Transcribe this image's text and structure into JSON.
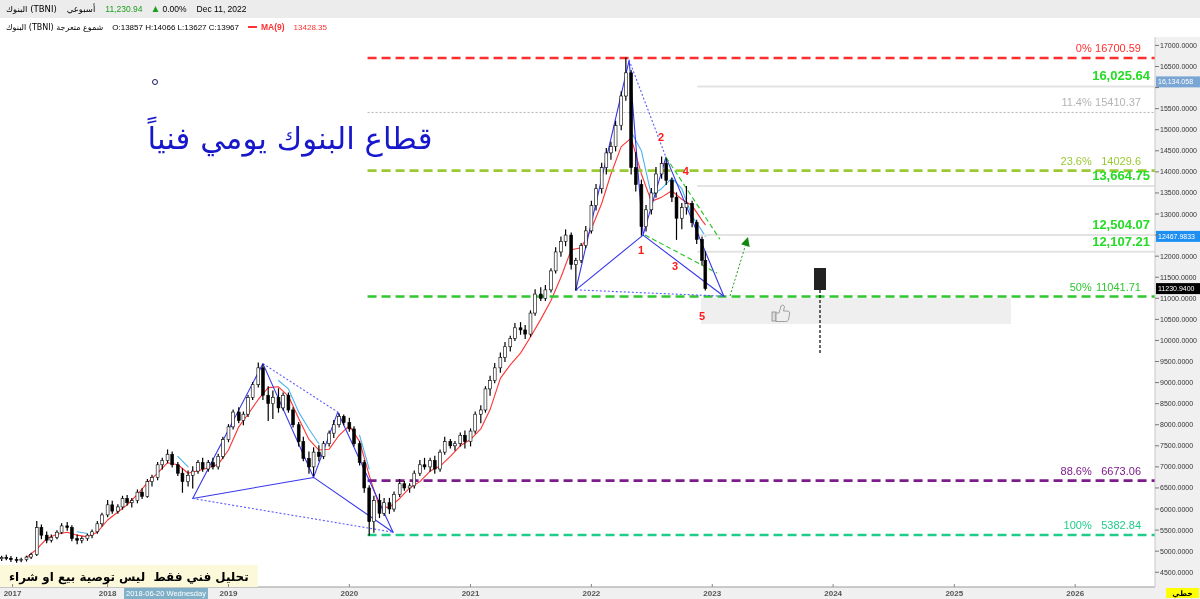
{
  "chart_data": {
    "type": "candlestick",
    "title": "قطاع البنوك يومي فنياً",
    "color": "#000000",
    "legend": "top left",
    "xlim": [
      "2017-02-10",
      "2026-08-30"
    ],
    "xticks": [
      {
        "value": "2017-03-20",
        "label": "2017"
      },
      "2018",
      "2019",
      "2020",
      "2021",
      "2022",
      "2023",
      "2024",
      "2025",
      "2026"
    ],
    "ylim": [
      4150,
      17200
    ],
    "yticks": [
      {
        "value": 4500,
        "label": "4500.0000"
      },
      {
        "value": 5000,
        "label": "5000.0000"
      },
      {
        "value": 5500,
        "label": "5500.0000"
      },
      {
        "value": 6000,
        "label": "6000.0000"
      },
      {
        "value": 6500,
        "label": "6500.0000"
      },
      {
        "value": 7000,
        "label": "7000.0000"
      },
      {
        "value": 7500,
        "label": "7500.0000"
      },
      {
        "value": 8000,
        "label": "8000.0000"
      },
      {
        "value": 8500,
        "label": "8500.0000"
      },
      {
        "value": 9000,
        "label": "9000.0000"
      },
      {
        "value": 9500,
        "label": "9500.0000"
      },
      {
        "value": 10000,
        "label": "10000.0000"
      },
      {
        "value": 10500,
        "label": "10500.0000"
      },
      {
        "value": 11000,
        "label": "11000.0000"
      },
      {
        "value": 11500,
        "label": "11500.0000"
      },
      {
        "value": 12000,
        "label": "12000.0000"
      },
      {
        "value": 12500,
        "label": null
      },
      {
        "value": 13000,
        "label": "13000.0000"
      },
      {
        "value": 13500,
        "label": "13500.0000"
      },
      {
        "value": 14000,
        "label": "14000.0000"
      },
      {
        "value": 14500,
        "label": "14500.0000"
      },
      {
        "value": 15000,
        "label": "15000.0000"
      },
      {
        "value": 15500,
        "label": "15500.0000"
      },
      {
        "value": 16000,
        "label": null
      },
      {
        "value": 16500,
        "label": "16500.0000"
      },
      {
        "value": 17000,
        "label": "17000.0000"
      }
    ],
    "x": [
      "2017-02-15",
      "2017-03-01",
      "2017-03-15",
      "2017-04-01",
      "2017-04-15",
      "2017-05-01",
      "2017-05-15",
      "2017-06-01",
      "2017-06-15",
      "2017-07-01",
      "2017-07-15",
      "2017-08-01",
      "2017-08-15",
      "2017-09-01",
      "2017-09-15",
      "2017-10-01",
      "2017-10-15",
      "2017-11-01",
      "2017-11-15",
      "2017-12-01",
      "2017-12-15",
      "2018-01-01",
      "2018-01-15",
      "2018-02-01",
      "2018-02-15",
      "2018-03-01",
      "2018-03-15",
      "2018-04-01",
      "2018-04-15",
      "2018-05-01",
      "2018-05-15",
      "2018-06-01",
      "2018-06-15",
      "2018-07-01",
      "2018-07-15",
      "2018-08-01",
      "2018-08-15",
      "2018-09-01",
      "2018-09-15",
      "2018-10-01",
      "2018-10-15",
      "2018-11-01",
      "2018-11-15",
      "2018-12-01",
      "2018-12-15",
      "2019-01-01",
      "2019-01-15",
      "2019-02-01",
      "2019-02-15",
      "2019-03-01",
      "2019-03-15",
      "2019-04-01",
      "2019-04-15",
      "2019-05-01",
      "2019-05-15",
      "2019-06-01",
      "2019-06-15",
      "2019-07-01",
      "2019-07-15",
      "2019-08-01",
      "2019-08-15",
      "2019-09-01",
      "2019-09-15",
      "2019-10-01",
      "2019-10-15",
      "2019-11-01",
      "2019-11-15",
      "2019-12-01",
      "2019-12-15",
      "2020-01-01",
      "2020-01-15",
      "2020-02-01",
      "2020-02-15",
      "2020-03-01",
      "2020-03-15",
      "2020-04-01",
      "2020-04-15",
      "2020-05-01",
      "2020-05-15",
      "2020-06-01",
      "2020-06-15",
      "2020-07-01",
      "2020-07-15",
      "2020-08-01",
      "2020-08-15",
      "2020-09-01",
      "2020-09-15",
      "2020-10-01",
      "2020-10-15",
      "2020-11-01",
      "2020-11-15",
      "2020-12-01",
      "2020-12-15",
      "2021-01-01",
      "2021-01-15",
      "2021-02-01",
      "2021-02-15",
      "2021-03-01",
      "2021-03-15",
      "2021-04-01",
      "2021-04-15",
      "2021-05-01",
      "2021-05-15",
      "2021-06-01",
      "2021-06-15",
      "2021-07-01",
      "2021-07-15",
      "2021-08-01",
      "2021-08-15",
      "2021-09-01",
      "2021-09-15",
      "2021-10-01",
      "2021-10-15",
      "2021-11-01",
      "2021-11-15",
      "2021-12-01",
      "2021-12-15",
      "2022-01-01",
      "2022-01-15",
      "2022-02-01",
      "2022-02-15",
      "2022-03-01",
      "2022-03-15",
      "2022-04-01",
      "2022-04-15",
      "2022-05-01",
      "2022-05-15",
      "2022-06-01",
      "2022-06-15",
      "2022-07-01",
      "2022-07-15",
      "2022-08-01",
      "2022-08-15",
      "2022-09-01",
      "2022-09-15",
      "2022-10-01",
      "2022-10-15",
      "2022-11-01",
      "2022-11-15",
      "2022-12-01",
      "2022-12-11"
    ],
    "ohlc": [
      [
        4820,
        4880,
        4780,
        4850
      ],
      [
        4850,
        4900,
        4800,
        4830
      ],
      [
        4830,
        4870,
        4760,
        4800
      ],
      [
        4800,
        4850,
        4740,
        4780
      ],
      [
        4780,
        4830,
        4750,
        4800
      ],
      [
        4800,
        4880,
        4770,
        4860
      ],
      [
        4860,
        4950,
        4830,
        4920
      ],
      [
        4920,
        5700,
        4900,
        5560
      ],
      [
        5560,
        5620,
        5300,
        5380
      ],
      [
        5380,
        5450,
        5200,
        5260
      ],
      [
        5260,
        5380,
        5220,
        5330
      ],
      [
        5330,
        5480,
        5300,
        5450
      ],
      [
        5450,
        5650,
        5420,
        5600
      ],
      [
        5600,
        5680,
        5500,
        5560
      ],
      [
        5560,
        5600,
        5250,
        5300
      ],
      [
        5300,
        5380,
        5180,
        5260
      ],
      [
        5260,
        5340,
        5200,
        5300
      ],
      [
        5300,
        5400,
        5260,
        5380
      ],
      [
        5380,
        5500,
        5320,
        5460
      ],
      [
        5460,
        5700,
        5430,
        5650
      ],
      [
        5650,
        5900,
        5600,
        5860
      ],
      [
        5860,
        6200,
        5820,
        6100
      ],
      [
        6100,
        6180,
        5900,
        5950
      ],
      [
        5950,
        6100,
        5900,
        6050
      ],
      [
        6050,
        6300,
        6000,
        6250
      ],
      [
        6250,
        6320,
        6100,
        6150
      ],
      [
        6150,
        6250,
        6050,
        6200
      ],
      [
        6200,
        6450,
        6150,
        6400
      ],
      [
        6400,
        6480,
        6250,
        6300
      ],
      [
        6300,
        6700,
        6280,
        6650
      ],
      [
        6650,
        6800,
        6550,
        6750
      ],
      [
        6750,
        7100,
        6700,
        7050
      ],
      [
        7050,
        7200,
        6950,
        7150
      ],
      [
        7150,
        7400,
        7100,
        7300
      ],
      [
        7300,
        7350,
        7000,
        7050
      ],
      [
        7050,
        7100,
        6800,
        6850
      ],
      [
        6850,
        6950,
        6400,
        6650
      ],
      [
        6650,
        6900,
        6550,
        6800
      ],
      [
        6800,
        7000,
        6500,
        6900
      ],
      [
        6900,
        7150,
        6850,
        7100
      ],
      [
        7100,
        7200,
        6900,
        6950
      ],
      [
        6950,
        7150,
        6900,
        7100
      ],
      [
        7100,
        7200,
        6950,
        7000
      ],
      [
        7000,
        7300,
        6950,
        7250
      ],
      [
        7250,
        7700,
        7200,
        7650
      ],
      [
        7650,
        8000,
        7600,
        7950
      ],
      [
        7950,
        8350,
        7900,
        8300
      ],
      [
        8300,
        8400,
        8050,
        8100
      ],
      [
        8100,
        8300,
        8000,
        8250
      ],
      [
        8250,
        8700,
        8200,
        8650
      ],
      [
        8650,
        9000,
        8600,
        8950
      ],
      [
        8950,
        9460,
        8900,
        9350
      ],
      [
        9350,
        9420,
        8600,
        8700
      ],
      [
        8700,
        8900,
        8100,
        8500
      ],
      [
        8500,
        8800,
        8150,
        8650
      ],
      [
        8650,
        8850,
        8300,
        8400
      ],
      [
        8400,
        8750,
        8350,
        8700
      ],
      [
        8700,
        8750,
        8300,
        8350
      ],
      [
        8350,
        8400,
        7950,
        8000
      ],
      [
        8000,
        8050,
        7500,
        7600
      ],
      [
        7600,
        7700,
        7150,
        7200
      ],
      [
        7200,
        7350,
        6850,
        7000
      ],
      [
        7000,
        7450,
        6800,
        7350
      ],
      [
        7350,
        7500,
        7150,
        7250
      ],
      [
        7250,
        7600,
        7200,
        7550
      ],
      [
        7550,
        7850,
        7500,
        7800
      ],
      [
        7800,
        8100,
        7700,
        8000
      ],
      [
        8000,
        8250,
        7950,
        8200
      ],
      [
        8200,
        8230,
        8000,
        8050
      ],
      [
        8050,
        8150,
        7850,
        7900
      ],
      [
        7900,
        7950,
        7500,
        7550
      ],
      [
        7550,
        7600,
        7050,
        7100
      ],
      [
        7100,
        7150,
        6400,
        6500
      ],
      [
        6500,
        6550,
        5380,
        5700
      ],
      [
        5700,
        6300,
        5450,
        6200
      ],
      [
        6200,
        6350,
        5800,
        5900
      ],
      [
        5900,
        6250,
        5850,
        6150
      ],
      [
        6150,
        6250,
        5900,
        6000
      ],
      [
        6000,
        6400,
        5950,
        6350
      ],
      [
        6350,
        6700,
        6300,
        6600
      ],
      [
        6600,
        6650,
        6450,
        6500
      ],
      [
        6500,
        6600,
        6400,
        6550
      ],
      [
        6550,
        6900,
        6500,
        6850
      ],
      [
        6850,
        7150,
        6800,
        7050
      ],
      [
        7050,
        7200,
        6950,
        7000
      ],
      [
        7000,
        7200,
        6900,
        7150
      ],
      [
        7150,
        7250,
        6850,
        6950
      ],
      [
        6950,
        7400,
        6900,
        7350
      ],
      [
        7350,
        7700,
        7300,
        7600
      ],
      [
        7600,
        7650,
        7450,
        7500
      ],
      [
        7500,
        7600,
        7400,
        7550
      ],
      [
        7550,
        7800,
        7500,
        7750
      ],
      [
        7750,
        7850,
        7450,
        7600
      ],
      [
        7600,
        7900,
        7500,
        7850
      ],
      [
        7850,
        8300,
        7800,
        8250
      ],
      [
        8250,
        8450,
        8050,
        8350
      ],
      [
        8350,
        8900,
        8300,
        8850
      ],
      [
        8850,
        9150,
        8700,
        9050
      ],
      [
        9050,
        9450,
        9000,
        9350
      ],
      [
        9350,
        9700,
        9250,
        9600
      ],
      [
        9600,
        9950,
        9500,
        9850
      ],
      [
        9850,
        10100,
        9750,
        10050
      ],
      [
        10050,
        10400,
        10000,
        10300
      ],
      [
        10300,
        10420,
        10150,
        10250
      ],
      [
        10250,
        10350,
        10050,
        10150
      ],
      [
        10150,
        10700,
        10100,
        10650
      ],
      [
        10650,
        11200,
        10600,
        11100
      ],
      [
        11100,
        11250,
        10950,
        11000
      ],
      [
        11000,
        11300,
        10950,
        11200
      ],
      [
        11200,
        11700,
        11150,
        11650
      ],
      [
        11650,
        12200,
        11600,
        12100
      ],
      [
        12100,
        12450,
        12000,
        12350
      ],
      [
        12350,
        12620,
        12250,
        12500
      ],
      [
        12500,
        12550,
        11700,
        11800
      ],
      [
        11800,
        11950,
        11200,
        11900
      ],
      [
        11900,
        12300,
        11850,
        12250
      ],
      [
        12250,
        12700,
        12200,
        12600
      ],
      [
        12600,
        13300,
        12550,
        13200
      ],
      [
        13200,
        13700,
        13100,
        13600
      ],
      [
        13600,
        14200,
        13500,
        14100
      ],
      [
        14100,
        14550,
        13950,
        14450
      ],
      [
        14450,
        14700,
        14300,
        14600
      ],
      [
        14600,
        15200,
        14500,
        15100
      ],
      [
        15100,
        15900,
        15000,
        15800
      ],
      [
        15800,
        16700.59,
        15700,
        16350
      ],
      [
        16350,
        16400,
        13950,
        14100
      ],
      [
        14100,
        14450,
        13550,
        13700
      ],
      [
        13700,
        13800,
        12500,
        12700
      ],
      [
        12700,
        13200,
        12600,
        13100
      ],
      [
        13100,
        13600,
        13000,
        13500
      ],
      [
        13500,
        14100,
        13400,
        13950
      ],
      [
        13950,
        14350,
        13850,
        14200
      ],
      [
        14200,
        14300,
        13700,
        13800
      ],
      [
        13800,
        13850,
        13300,
        13400
      ],
      [
        13400,
        13500,
        12400,
        12900
      ],
      [
        12900,
        13250,
        12650,
        13150
      ],
      [
        13150,
        13650,
        13000,
        13250
      ],
      [
        13250,
        13300,
        12700,
        12800
      ],
      [
        12800,
        12850,
        12300,
        12400
      ],
      [
        12400,
        12450,
        11800,
        11900
      ],
      [
        11900,
        12100,
        11200,
        11230.94
      ]
    ],
    "series": [
      {
        "type": "line",
        "color": "#4db3f0",
        "x": [
          "2017-10",
          "2017-11"
        ],
        "values": [
          5460,
          5420
        ]
      },
      {
        "type": "line",
        "color": "#4db3f0",
        "x": [
          "2018-08",
          "2018-09"
        ],
        "values": [
          7250,
          7000
        ]
      },
      {
        "type": "line",
        "color": "#4db3f0",
        "x": [
          "2019-06",
          "2019-07",
          "2019-08",
          "2019-09",
          "2019-10"
        ],
        "values": [
          9050,
          8850,
          8300,
          7900,
          7550
        ]
      },
      {
        "type": "line",
        "color": "#4db3f0",
        "x": [
          "2020-02",
          "2020-03"
        ],
        "values": [
          7750,
          6950
        ]
      },
      {
        "type": "line",
        "color": "#4db3f0",
        "x": [
          "2022-05",
          "2022-06",
          "2022-07",
          "2022-08",
          "2022-09",
          "2022-10",
          "2022-11",
          "2022-12",
          "2022-12-11"
        ],
        "values": [
          14950,
          14500,
          13450,
          13600,
          13850,
          13600,
          12950,
          12600,
          12470
        ]
      },
      {
        "type": "line",
        "name": "MA(9)",
        "color": "#ff3333",
        "x": [
          "2017-05",
          "2017-06",
          "2017-07",
          "2017-08",
          "2017-09",
          "2017-10",
          "2017-11",
          "2017-12",
          "2018-01",
          "2018-02",
          "2018-03",
          "2018-04",
          "2018-05",
          "2018-06",
          "2018-07",
          "2018-08",
          "2018-09",
          "2018-10",
          "2018-11",
          "2018-12",
          "2019-01",
          "2019-02",
          "2019-03",
          "2019-04",
          "2019-05",
          "2019-06",
          "2019-07",
          "2019-08",
          "2019-09",
          "2019-10",
          "2019-11",
          "2019-12",
          "2020-01",
          "2020-02",
          "2020-03",
          "2020-04",
          "2020-05",
          "2020-06",
          "2020-07",
          "2020-08",
          "2020-09",
          "2020-10",
          "2020-11",
          "2020-12",
          "2021-01",
          "2021-02",
          "2021-03",
          "2021-04",
          "2021-05",
          "2021-06",
          "2021-07",
          "2021-08",
          "2021-09",
          "2021-10",
          "2021-11",
          "2021-12",
          "2022-01",
          "2022-02",
          "2022-03",
          "2022-04",
          "2022-05",
          "2022-06",
          "2022-07",
          "2022-08",
          "2022-09",
          "2022-10",
          "2022-11",
          "2022-12",
          "2022-12-11"
        ],
        "values": [
          4850,
          5050,
          5300,
          5400,
          5450,
          5380,
          5340,
          5450,
          5740,
          5930,
          6100,
          6350,
          6620,
          6850,
          7100,
          7050,
          6850,
          6910,
          6980,
          7060,
          7400,
          7950,
          8250,
          8600,
          8880,
          8900,
          8680,
          8150,
          7650,
          7400,
          7420,
          7750,
          7980,
          7600,
          6800,
          6050,
          6040,
          6250,
          6500,
          6650,
          6900,
          7020,
          7250,
          7500,
          7650,
          7900,
          8360,
          9100,
          9420,
          9700,
          10080,
          10500,
          10950,
          11500,
          12150,
          12200,
          12650,
          13250,
          13950,
          14600,
          14800,
          13950,
          13300,
          13400,
          13550,
          13350,
          13200,
          12850,
          12750
        ]
      },
      {
        "type": "line",
        "color": "#ff2e2e",
        "line_style": "dashed",
        "x": [
          "2020-02-25",
          "2026-08-30"
        ],
        "values": [
          16700.59,
          16700.59
        ],
        "value_labels": [
          null,
          "16700.59"
        ]
      },
      {
        "type": "line",
        "color": "#b4b4b4",
        "line_style": "dotted",
        "x": [
          "2020-02-25",
          "2026-08-30"
        ],
        "values": [
          15410.37,
          15410.37
        ],
        "value_labels": [
          null,
          "15410.37"
        ]
      },
      {
        "type": "line",
        "color": "#99c933",
        "line_style": "dashed",
        "x": [
          "2020-02-25",
          "2026-08-30"
        ],
        "values": [
          14029.6,
          14029.6
        ],
        "value_labels": [
          null,
          "14029.6"
        ]
      },
      {
        "type": "line",
        "color": "#2fc62f",
        "line_style": "dashed",
        "x": [
          "2020-02-25",
          "2026-08-30"
        ],
        "values": [
          11041.71,
          11041.71
        ],
        "value_labels": [
          null,
          "11041.71"
        ]
      },
      {
        "type": "line",
        "color": "#7d1a8c",
        "line_style": "dashed",
        "x": [
          "2020-02-25",
          "2026-08-30"
        ],
        "values": [
          6673.06,
          6673.06
        ],
        "value_labels": [
          null,
          "6673.06"
        ]
      },
      {
        "type": "line",
        "color": "#1fcc8a",
        "line_style": "dashed",
        "x": [
          "2020-02-25",
          "2026-08-30"
        ],
        "values": [
          5382.84,
          5382.84
        ],
        "value_labels": [
          null,
          "5382.84"
        ]
      },
      {
        "type": "line",
        "color": "#e3e3e3",
        "x": [
          "2022-11-19",
          "2026-08-30"
        ],
        "values": [
          16025.64,
          16025.64
        ],
        "value_labels": [
          null,
          "16,025.64"
        ]
      },
      {
        "type": "line",
        "color": "#e3e3e3",
        "x": [
          "2022-11-19",
          "2026-08-30"
        ],
        "values": [
          13664.75,
          13664.75
        ],
        "value_labels": [
          null,
          "13,664.75"
        ]
      },
      {
        "type": "line",
        "color": "#e3e3e3",
        "x": [
          "2022-11-19",
          "2026-08-30"
        ],
        "values": [
          12504.07,
          12504.07
        ],
        "value_labels": [
          null,
          "12,504.07"
        ]
      },
      {
        "type": "line",
        "color": "#e3e3e3",
        "x": [
          "2022-11-19",
          "2026-08-30"
        ],
        "values": [
          12107.21,
          12107.21
        ],
        "value_labels": [
          null,
          "12,107.21"
        ]
      },
      {
        "type": "line",
        "color": "#3535ee",
        "x": [
          "2018-09-15",
          "2019-04-15",
          "2019-09-15",
          "2019-11-27",
          "2020-05-12"
        ],
        "values": [
          6250,
          9450,
          6750,
          8300,
          5450
        ]
      },
      {
        "type": "line",
        "color": "#3535ee",
        "x": [
          "2018-09-15",
          "2019-09-15",
          "2020-05-12"
        ],
        "values": [
          6250,
          6750,
          5450
        ]
      },
      {
        "type": "line",
        "color": "#5a5aff",
        "line_style": "dotted",
        "x": [
          "2019-04-15",
          "2019-11-27"
        ],
        "values": [
          9450,
          8300
        ]
      },
      {
        "type": "line",
        "color": "#5a5aff",
        "line_style": "dotted",
        "x": [
          "2018-09-15",
          "2020-05-12"
        ],
        "values": [
          6250,
          5450
        ]
      },
      {
        "type": "line",
        "color": "#3535ee",
        "x": [
          "2021-11-15",
          "2022-04-25",
          "2022-06-06",
          "2022-08-14",
          "2023-02-05"
        ],
        "values": [
          11200,
          16650,
          12500,
          14350,
          11050
        ]
      },
      {
        "type": "line",
        "color": "#3535ee",
        "x": [
          "2021-11-15",
          "2022-06-06",
          "2023-02-05"
        ],
        "values": [
          11200,
          12500,
          11050
        ]
      },
      {
        "type": "line",
        "color": "#5a5aff",
        "line_style": "dotted",
        "x": [
          "2022-04-25",
          "2022-08-14"
        ],
        "values": [
          16650,
          14350
        ]
      },
      {
        "type": "line",
        "color": "#5a5aff",
        "line_style": "dotted",
        "x": [
          "2021-11-15",
          "2023-02-05"
        ],
        "values": [
          11200,
          11050
        ]
      },
      {
        "type": "line",
        "color": "#22c322",
        "line_style": "dashed",
        "x": [
          "2022-08-14",
          "2023-01-24"
        ],
        "values": [
          14350,
          12400
        ]
      },
      {
        "type": "line",
        "color": "#22c322",
        "line_style": "dashed",
        "x": [
          "2022-06-12",
          "2023-01-15"
        ],
        "values": [
          12500,
          11600
        ]
      }
    ],
    "annotations": [
      "البنوك (TBNI)",
      "أسبوعي",
      "11,230.94",
      "0.00%",
      "Dec 11, 2022",
      "البنوك (TBNI) شموع متعرجة",
      "O:13857 H:14066 L:13627 C:13967",
      "13428.35",
      "تحليل فني فقط  ليس توصية بيع او شراء",
      "خطي",
      "2018-06-20 Wednesday",
      "16,134.058",
      "12467.9833",
      "11230.9400",
      "1",
      "3",
      "5",
      {
        "text": "2",
        "x": "2022-07-30",
        "y": 14818
      },
      {
        "text": "4",
        "x": "2022-10-13",
        "y": 14012
      },
      {
        "text": "0%",
        "x": "2026-02-20",
        "y": 16700.59
      },
      {
        "text": "11.4%",
        "x": "2026-02-20",
        "y": 15410.37
      },
      {
        "text": "23.6%",
        "x": "2026-02-20",
        "y": 14029.6
      },
      {
        "text": "50%",
        "x": "2026-02-20",
        "y": 11041.71
      },
      {
        "text": "88.6%",
        "x": "2026-02-20",
        "y": 6673.06
      },
      {
        "text": "100%",
        "x": "2026-02-20",
        "y": 5382.84
      }
    ]
  }
}
